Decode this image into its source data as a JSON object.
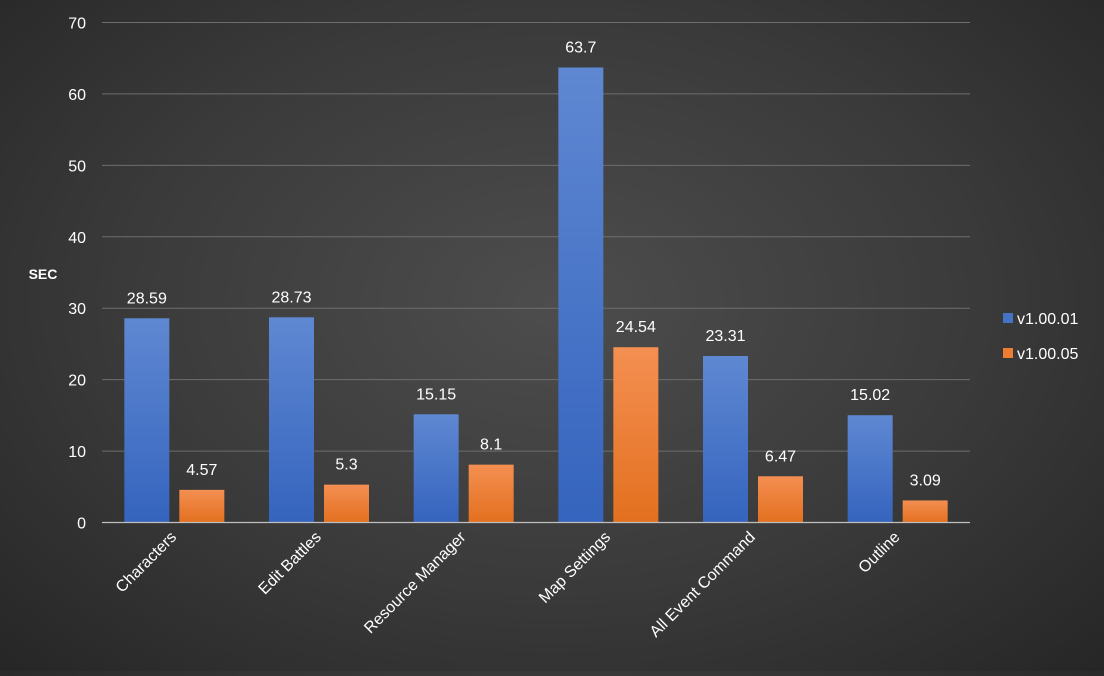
{
  "chart_data": {
    "type": "bar",
    "title": "",
    "xlabel": "",
    "ylabel": "SEC",
    "ylim": [
      0,
      70
    ],
    "yticks": [
      0,
      10,
      20,
      30,
      40,
      50,
      60,
      70
    ],
    "categories": [
      "Characters",
      "Edit Battles",
      "Resource Manager",
      "Map Settings",
      "All Event Command",
      "Outline"
    ],
    "series": [
      {
        "name": "v1.00.01",
        "values": [
          28.59,
          28.73,
          15.15,
          63.7,
          23.31,
          15.02
        ],
        "labels": [
          "28.59",
          "28.73",
          "15.15",
          "63.7",
          "23.31",
          "15.02"
        ],
        "color": "#4472c4"
      },
      {
        "name": "v1.00.05",
        "values": [
          4.57,
          5.3,
          8.1,
          24.54,
          6.47,
          3.09
        ],
        "labels": [
          "4.57",
          "5.3",
          "8.1",
          "24.54",
          "6.47",
          "3.09"
        ],
        "color": "#ed7d31"
      }
    ],
    "grid": true,
    "legend_position": "right"
  }
}
